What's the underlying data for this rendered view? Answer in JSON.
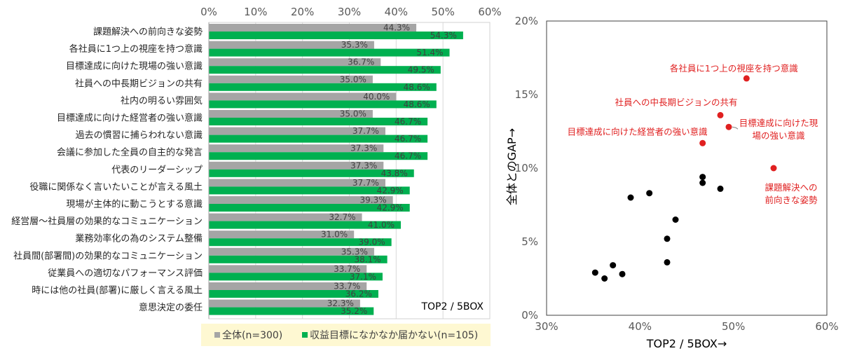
{
  "chart_data": [
    {
      "type": "bar",
      "orientation": "horizontal",
      "categories": [
        "課題解決への前向きな姿勢",
        "各社員に1つ上の視座を持つ意識",
        "目標達成に向けた現場の強い意識",
        "社員への中長期ビジョンの共有",
        "社内の明るい雰囲気",
        "目標達成に向けた経営者の強い意識",
        "過去の慣習に捕らわれない意識",
        "会議に参加した全員の自主的な発言",
        "代表のリーダーシップ",
        "役職に関係なく言いたいことが言える風土",
        "現場が主体的に動こうとする意識",
        "経営層～社員層の効果的なコミュニケーション",
        "業務効率化の為のシステム整備",
        "社員間(部署間)の効果的なコミュニケーション",
        "従業員への適切なパフォーマンス評価",
        "時には他の社員(部署)に厳しく言える風土",
        "意思決定の委任"
      ],
      "series": [
        {
          "name": "全体(n=300)",
          "color": "#A5A5A5",
          "values": [
            44.3,
            35.3,
            36.7,
            35.0,
            40.0,
            35.0,
            37.7,
            37.3,
            37.3,
            37.7,
            39.3,
            32.7,
            31.0,
            35.3,
            33.7,
            33.7,
            32.3
          ],
          "labels": [
            "44.3%",
            "35.3%",
            "36.7%",
            "35.0%",
            "40.0%",
            "35.0%",
            "37.7%",
            "37.3%",
            "37.3%",
            "37.7%",
            "39.3%",
            "32.7%",
            "31.0%",
            "35.3%",
            "33.7%",
            "33.7%",
            "32.3%"
          ]
        },
        {
          "name": "収益目標になかなか届かない(n=105)",
          "color": "#00B050",
          "values": [
            54.3,
            51.4,
            49.5,
            48.6,
            48.6,
            46.7,
            46.7,
            46.7,
            43.8,
            42.9,
            42.9,
            41.0,
            39.0,
            38.1,
            37.1,
            36.2,
            35.2
          ],
          "labels": [
            "54.3%",
            "51.4%",
            "49.5%",
            "48.6%",
            "48.6%",
            "46.7%",
            "46.7%",
            "46.7%",
            "43.8%",
            "42.9%",
            "42.9%",
            "41.0%",
            "39.0%",
            "38.1%",
            "37.1%",
            "36.2%",
            "35.2%"
          ]
        }
      ],
      "xlim": [
        0,
        60
      ],
      "xticks": [
        "0%",
        "10%",
        "20%",
        "30%",
        "40%",
        "50%",
        "60%"
      ],
      "xaxis_position": "top",
      "grid": true,
      "annotation": "TOP2 / 5BOX",
      "legend_placement": "bottom"
    },
    {
      "type": "scatter",
      "xlabel": "TOP2 / 5BOX→",
      "ylabel": "全体とのGAP→",
      "xlim": [
        30,
        60
      ],
      "ylim": [
        0,
        20
      ],
      "xticks": [
        "30%",
        "40%",
        "50%",
        "60%"
      ],
      "yticks": [
        "0%",
        "5%",
        "10%",
        "15%",
        "20%"
      ],
      "grid": false,
      "point_color": "#000000",
      "highlight_color": "#E02020",
      "points": [
        {
          "x": 54.3,
          "y": 10.0,
          "highlight": true,
          "label": [
            "課題解決への",
            "前向きな姿勢"
          ]
        },
        {
          "x": 51.4,
          "y": 16.1,
          "highlight": true,
          "label": [
            "各社員に1つ上の視座を持つ意識"
          ]
        },
        {
          "x": 49.5,
          "y": 12.8,
          "highlight": true,
          "label": [
            "目標達成に向けた現",
            "場の強い意識"
          ]
        },
        {
          "x": 48.6,
          "y": 13.6,
          "highlight": true,
          "label": [
            "社員への中長期ビジョンの共有"
          ]
        },
        {
          "x": 48.6,
          "y": 8.6,
          "highlight": false
        },
        {
          "x": 46.7,
          "y": 11.7,
          "highlight": true,
          "label": [
            "目標達成に向けた経営者の強い意識"
          ]
        },
        {
          "x": 46.7,
          "y": 9.0,
          "highlight": false
        },
        {
          "x": 46.7,
          "y": 9.4,
          "highlight": false
        },
        {
          "x": 43.8,
          "y": 6.5,
          "highlight": false
        },
        {
          "x": 42.9,
          "y": 5.2,
          "highlight": false
        },
        {
          "x": 42.9,
          "y": 3.6,
          "highlight": false
        },
        {
          "x": 41.0,
          "y": 8.3,
          "highlight": false
        },
        {
          "x": 39.0,
          "y": 8.0,
          "highlight": false
        },
        {
          "x": 38.1,
          "y": 2.8,
          "highlight": false
        },
        {
          "x": 37.1,
          "y": 3.4,
          "highlight": false
        },
        {
          "x": 36.2,
          "y": 2.5,
          "highlight": false
        },
        {
          "x": 35.2,
          "y": 2.9,
          "highlight": false
        }
      ]
    }
  ]
}
